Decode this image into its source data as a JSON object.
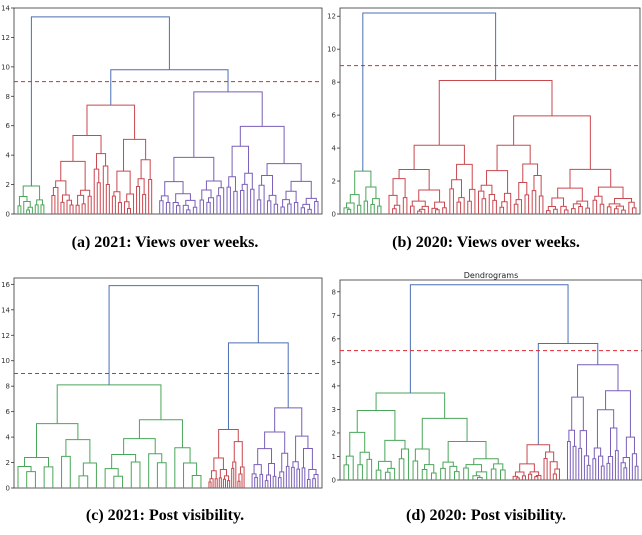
{
  "colors": {
    "blue": "#4c6fb5",
    "red": "#c9484f",
    "green": "#4aa65a",
    "purple": "#7a5fb8",
    "cut": "#e0282e"
  },
  "panels": [
    {
      "caption": "(a) 2021: Views over weeks.",
      "title": "",
      "yticks": [
        "0",
        "2",
        "4",
        "6",
        "8",
        "10",
        "12",
        "14"
      ]
    },
    {
      "caption": "(b) 2020: Views over weeks.",
      "title": "",
      "yticks": [
        "0",
        "2",
        "4",
        "6",
        "8",
        "10",
        "12"
      ]
    },
    {
      "caption": "(c) 2021: Post visibility.",
      "title": "",
      "yticks": [
        "0",
        "2",
        "4",
        "6",
        "8",
        "10",
        "12",
        "14",
        "16"
      ]
    },
    {
      "caption": "(d) 2020: Post visibility.",
      "title": "Dendrograms",
      "yticks": [
        "0",
        "1",
        "2",
        "3",
        "4",
        "5",
        "6",
        "7",
        "8"
      ]
    }
  ],
  "chart_data": [
    {
      "type": "dendrogram",
      "title": "",
      "ylim": [
        0,
        14
      ],
      "yticks": [
        0,
        2,
        4,
        6,
        8,
        10,
        12,
        14
      ],
      "cut_height": 9.0,
      "merges": [
        {
          "height": 13.4,
          "branches": [
            "green",
            "red+purple"
          ]
        },
        {
          "height": 9.8,
          "branches": [
            "red",
            "purple"
          ]
        },
        {
          "height": 7.4,
          "cluster": "red"
        },
        {
          "height": 8.3,
          "cluster": "purple"
        },
        {
          "height": 1.9,
          "cluster": "green"
        }
      ],
      "cluster_colors": [
        "green",
        "red",
        "purple"
      ]
    },
    {
      "type": "dendrogram",
      "title": "",
      "ylim": [
        0,
        12.5
      ],
      "yticks": [
        0,
        2,
        4,
        6,
        8,
        10,
        12
      ],
      "cut_height": 9.0,
      "merges": [
        {
          "height": 12.2,
          "branches": [
            "green",
            "red"
          ]
        },
        {
          "height": 8.1,
          "cluster": "red"
        },
        {
          "height": 2.6,
          "cluster": "green"
        }
      ],
      "cluster_colors": [
        "green",
        "red"
      ]
    },
    {
      "type": "dendrogram",
      "title": "",
      "ylim": [
        0,
        16.5
      ],
      "yticks": [
        0,
        2,
        4,
        6,
        8,
        10,
        12,
        14,
        16
      ],
      "cut_height": 9.0,
      "merges": [
        {
          "height": 15.9,
          "branches": [
            "green",
            "red+purple"
          ]
        },
        {
          "height": 11.4,
          "branches": [
            "red",
            "purple"
          ]
        },
        {
          "height": 8.1,
          "cluster": "green"
        },
        {
          "height": 4.6,
          "cluster": "red"
        },
        {
          "height": 6.3,
          "cluster": "purple"
        }
      ],
      "cluster_colors": [
        "green",
        "red",
        "purple"
      ]
    },
    {
      "type": "dendrogram",
      "title": "Dendrograms",
      "ylim": [
        0,
        8.5
      ],
      "yticks": [
        0,
        1,
        2,
        3,
        4,
        5,
        6,
        7,
        8
      ],
      "cut_height": 5.5,
      "merges": [
        {
          "height": 8.3,
          "branches": [
            "green",
            "red+purple"
          ]
        },
        {
          "height": 5.8,
          "branches": [
            "red",
            "purple"
          ]
        },
        {
          "height": 3.7,
          "cluster": "green"
        },
        {
          "height": 1.5,
          "cluster": "red"
        },
        {
          "height": 4.9,
          "cluster": "purple"
        }
      ],
      "cluster_colors": [
        "green",
        "red",
        "purple"
      ]
    }
  ]
}
